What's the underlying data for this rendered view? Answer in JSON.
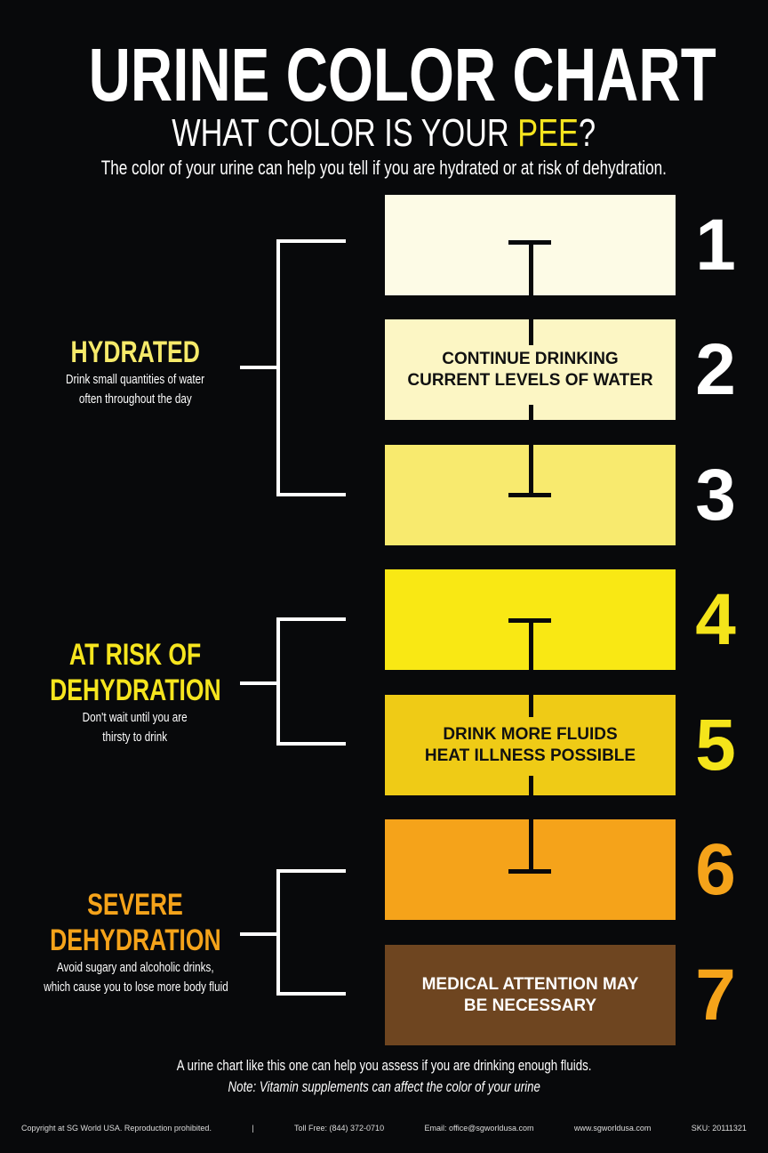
{
  "header": {
    "title": "URINE COLOR CHART",
    "subtitle_before": "WHAT COLOR IS YOUR ",
    "subtitle_highlight": "PEE",
    "subtitle_after": "?",
    "intro": "The color of your urine can help you tell if you are hydrated or at risk of dehydration."
  },
  "swatches": [
    {
      "number": "1",
      "color": "#fdfbe6",
      "number_color": "#ffffff",
      "text": ""
    },
    {
      "number": "2",
      "color": "#fcf6c4",
      "number_color": "#ffffff",
      "text_line1": "CONTINUE DRINKING",
      "text_line2": "CURRENT LEVELS OF WATER",
      "text_color": "#111111"
    },
    {
      "number": "3",
      "color": "#f8ea6e",
      "number_color": "#ffffff",
      "text": ""
    },
    {
      "number": "4",
      "color": "#f9e814",
      "number_color": "#f4e41a",
      "text": ""
    },
    {
      "number": "5",
      "color": "#efcb16",
      "number_color": "#f4e41a",
      "text_line1": "DRINK MORE FLUIDS",
      "text_line2": "HEAT ILLNESS POSSIBLE",
      "text_color": "#111111"
    },
    {
      "number": "6",
      "color": "#f5a31a",
      "number_color": "#f5a31a",
      "text": ""
    },
    {
      "number": "7",
      "color": "#6e4520",
      "number_color": "#f5a31a",
      "text_line1": "MEDICAL ATTENTION MAY",
      "text_line2": "BE NECESSARY",
      "text_color": "#ffffff"
    }
  ],
  "groups": [
    {
      "line1": "HYDRATED",
      "line2": "",
      "desc1": "Drink small quantities of water",
      "desc2": "often throughout the day",
      "color": "#f6ea6a"
    },
    {
      "line1": "AT RISK OF",
      "line2": "DEHYDRATION",
      "desc1": "Don't wait until you are",
      "desc2": "thirsty to drink",
      "color": "#f6e51e"
    },
    {
      "line1": "SEVERE",
      "line2": "DEHYDRATION",
      "desc1": "Avoid sugary and alcoholic drinks,",
      "desc2": "which cause you to lose more body fluid",
      "color": "#f5a31a"
    }
  ],
  "bottom": {
    "line1": "A urine chart like this one can help you assess if you are drinking enough fluids.",
    "line2": "Note: Vitamin supplements can affect the color of your urine"
  },
  "footer": {
    "copyright": "Copyright at SG World USA. Reproduction prohibited.",
    "separator": "|",
    "phone": "Toll Free: (844) 372-0710",
    "email": "Email: office@sgworldusa.com",
    "web": "www.sgworldusa.com",
    "sku": "SKU: 20111321"
  }
}
